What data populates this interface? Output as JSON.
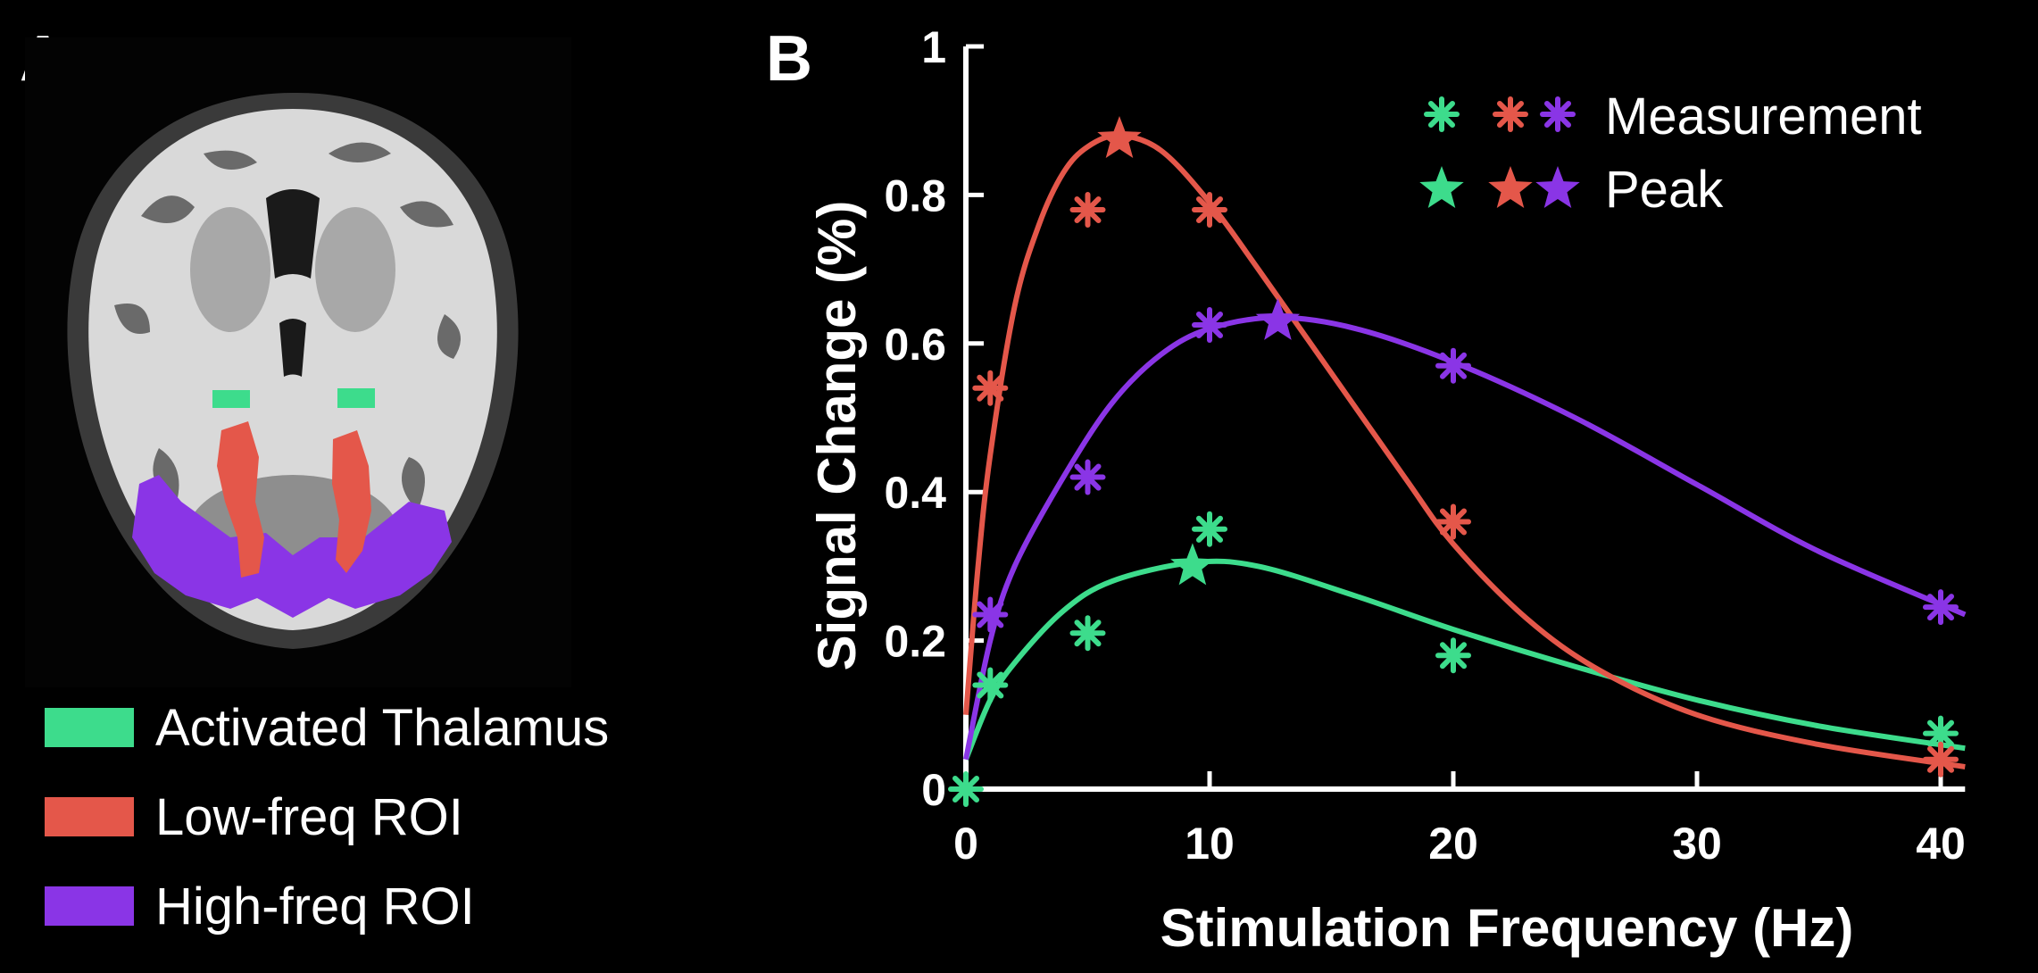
{
  "panels": {
    "a_label": "A",
    "b_label": "B"
  },
  "roi_legend": [
    {
      "label": "Activated Thalamus",
      "color": "#3ddc8c"
    },
    {
      "label": "Low-freq ROI",
      "color": "#e4574a"
    },
    {
      "label": "High-freq ROI",
      "color": "#8a35e6"
    }
  ],
  "chart_data": {
    "type": "scatter",
    "xlabel": "Stimulation Frequency (Hz)",
    "ylabel": "Signal Change (%)",
    "xlim": [
      0,
      41
    ],
    "ylim": [
      0,
      1
    ],
    "x_ticks": [
      "0",
      "10",
      "20",
      "30",
      "40"
    ],
    "y_ticks": [
      "0",
      "0.2",
      "0.4",
      "0.6",
      "0.8",
      "1"
    ],
    "legend": {
      "measurement_label": "Measurement",
      "peak_label": "Peak",
      "placement": "top-right"
    },
    "series": [
      {
        "color": "#3ddc8c",
        "measurements": [
          [
            0,
            0.0
          ],
          [
            1,
            0.14
          ],
          [
            5,
            0.21
          ],
          [
            10,
            0.35
          ],
          [
            20,
            0.18
          ],
          [
            40,
            0.075
          ]
        ],
        "peak": [
          9.3,
          0.3
        ],
        "fit": [
          [
            0,
            0.04
          ],
          [
            1,
            0.12
          ],
          [
            2,
            0.17
          ],
          [
            4,
            0.24
          ],
          [
            6,
            0.28
          ],
          [
            9.3,
            0.305
          ],
          [
            12,
            0.3
          ],
          [
            16,
            0.26
          ],
          [
            20,
            0.215
          ],
          [
            25,
            0.165
          ],
          [
            30,
            0.12
          ],
          [
            35,
            0.085
          ],
          [
            41,
            0.055
          ]
        ]
      },
      {
        "color": "#e4574a",
        "measurements": [
          [
            1,
            0.54
          ],
          [
            5,
            0.78
          ],
          [
            10,
            0.78
          ],
          [
            20,
            0.36
          ],
          [
            40,
            0.04
          ]
        ],
        "peak": [
          6.3,
          0.875
        ],
        "fit": [
          [
            0,
            0.1
          ],
          [
            0.5,
            0.3
          ],
          [
            1,
            0.45
          ],
          [
            2,
            0.65
          ],
          [
            3,
            0.76
          ],
          [
            4,
            0.83
          ],
          [
            5,
            0.865
          ],
          [
            6.3,
            0.88
          ],
          [
            8,
            0.86
          ],
          [
            10,
            0.79
          ],
          [
            12,
            0.7
          ],
          [
            15,
            0.56
          ],
          [
            18,
            0.42
          ],
          [
            20,
            0.33
          ],
          [
            23,
            0.23
          ],
          [
            26,
            0.16
          ],
          [
            30,
            0.1
          ],
          [
            35,
            0.06
          ],
          [
            41,
            0.03
          ]
        ]
      },
      {
        "color": "#8a35e6",
        "measurements": [
          [
            1,
            0.235
          ],
          [
            5,
            0.42
          ],
          [
            10,
            0.625
          ],
          [
            20,
            0.57
          ],
          [
            40,
            0.245
          ]
        ],
        "peak": [
          12.8,
          0.63
        ],
        "fit": [
          [
            0,
            0.04
          ],
          [
            1,
            0.2
          ],
          [
            2,
            0.3
          ],
          [
            4,
            0.42
          ],
          [
            6,
            0.52
          ],
          [
            8,
            0.585
          ],
          [
            10,
            0.62
          ],
          [
            12.8,
            0.635
          ],
          [
            16,
            0.62
          ],
          [
            20,
            0.575
          ],
          [
            25,
            0.5
          ],
          [
            30,
            0.41
          ],
          [
            35,
            0.32
          ],
          [
            41,
            0.235
          ]
        ]
      }
    ]
  }
}
